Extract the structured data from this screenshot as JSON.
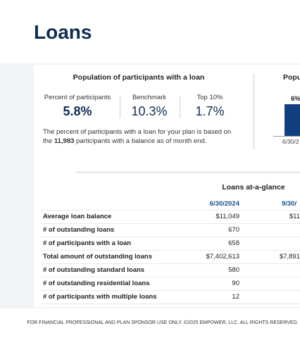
{
  "header": {
    "title": "Loans"
  },
  "population": {
    "title": "Population of participants with a loan",
    "stats": [
      {
        "label": "Percent of participants",
        "value": "5.8%"
      },
      {
        "label": "Benchmark",
        "value": "10.3%"
      },
      {
        "label": "Top 10%",
        "value": "1.7%"
      }
    ],
    "note_before": "The percent of participants with a loan for your plan is based on the ",
    "note_bold": "11,983",
    "note_after": " participants with a balance as of month end."
  },
  "side_chart": {
    "title": "Popu",
    "bar_label": "6%",
    "axis_label": "6/30/2"
  },
  "table": {
    "title": "Loans at-a-glance",
    "columns": [
      "6/30/2024",
      "9/30/"
    ],
    "rows": [
      [
        "Average loan balance",
        "$11,049",
        "$11"
      ],
      [
        "# of outstanding loans",
        "670"
      ],
      [
        "# of participants with a loan",
        "658"
      ],
      [
        "Total amount of outstanding loans",
        "$7,402,613",
        "$7,891"
      ],
      [
        "# of outstanding standard loans",
        "580"
      ],
      [
        "# of outstanding residential loans",
        "90"
      ],
      [
        "# of participants with multiple loans",
        "12"
      ]
    ]
  },
  "footer": "FOR FINANCIAL PROFESSIONAL AND PLAN SPONSOR USE ONLY. ©2025 EMPOWER, LLC. ALL RIGHTS RESERVED."
}
